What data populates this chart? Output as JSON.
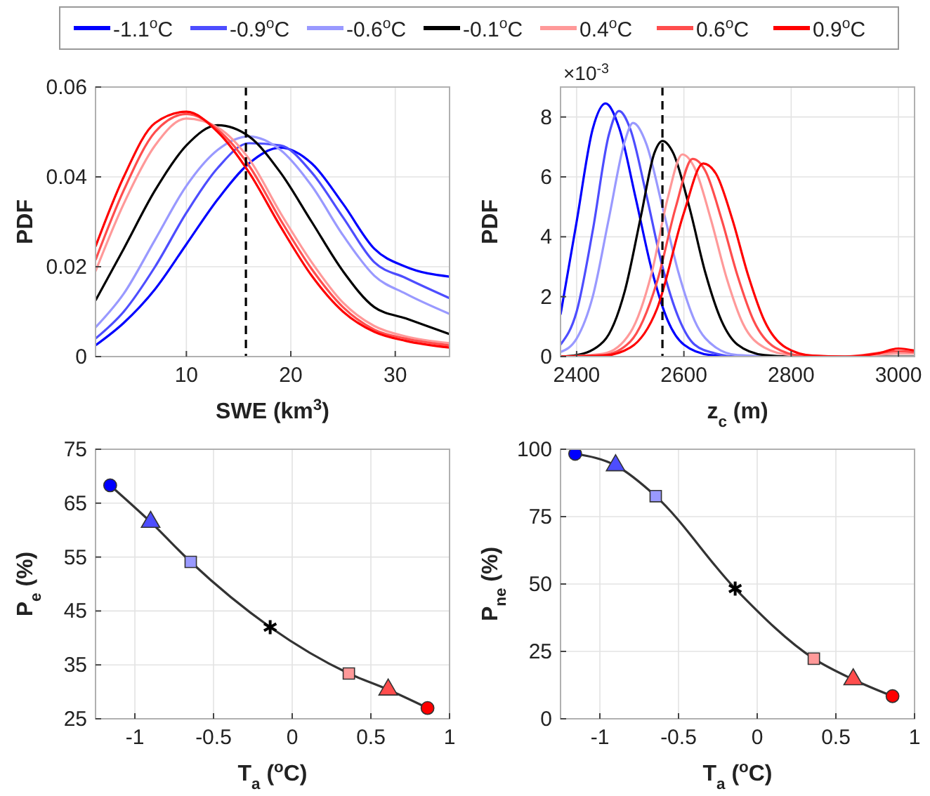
{
  "chart_data": [
    {
      "type": "line",
      "xlabel": "SWE (km$^{3}$)",
      "ylabel": "PDF",
      "xlim": [
        1.3,
        35.2
      ],
      "ylim": [
        0,
        0.06
      ],
      "xticks": [
        10,
        20,
        30
      ],
      "yticks": [
        0,
        0.02,
        0.04,
        0.06
      ],
      "grid": true,
      "legend": "top",
      "marker": "none",
      "x": [
        1.3,
        4,
        7,
        10,
        13,
        16,
        19,
        22,
        25,
        28,
        31,
        35.2
      ],
      "series": [
        {
          "name": "-1.1$^{o}$C",
          "color": "#0000ff",
          "values": [
            0.0025,
            0.0075,
            0.015,
            0.025,
            0.035,
            0.043,
            0.0465,
            0.043,
            0.034,
            0.024,
            0.02,
            0.0178
          ]
        },
        {
          "name": "-0.9$^{o}$C",
          "color": "#4d4dff",
          "values": [
            0.004,
            0.01,
            0.02,
            0.032,
            0.042,
            0.0475,
            0.047,
            0.041,
            0.031,
            0.021,
            0.0175,
            0.013
          ]
        },
        {
          "name": "-0.6$^{o}$C",
          "color": "#9999ff",
          "values": [
            0.0065,
            0.014,
            0.026,
            0.038,
            0.046,
            0.049,
            0.046,
            0.038,
            0.027,
            0.018,
            0.014,
            0.0095
          ]
        },
        {
          "name": "-0.1$^{o}$C",
          "color": "#000000",
          "values": [
            0.0125,
            0.024,
            0.037,
            0.047,
            0.0515,
            0.049,
            0.041,
            0.03,
            0.019,
            0.011,
            0.0085,
            0.005
          ]
        },
        {
          "name": "0.4$^{o}$C",
          "color": "#ff9999",
          "values": [
            0.019,
            0.034,
            0.047,
            0.053,
            0.051,
            0.044,
            0.032,
            0.021,
            0.012,
            0.0068,
            0.0045,
            0.003
          ]
        },
        {
          "name": "0.6$^{o}$C",
          "color": "#ff4d4d",
          "values": [
            0.0215,
            0.037,
            0.05,
            0.054,
            0.0505,
            0.0425,
            0.0305,
            0.0195,
            0.011,
            0.006,
            0.004,
            0.0025
          ]
        },
        {
          "name": "0.9$^{o}$C",
          "color": "#ff0000",
          "values": [
            0.0245,
            0.04,
            0.052,
            0.0545,
            0.05,
            0.041,
            0.029,
            0.018,
            0.01,
            0.0055,
            0.0035,
            0.002
          ]
        }
      ],
      "ref_lines": [
        {
          "axis": "x",
          "value": 15.7,
          "color": "#000000",
          "line_style": "dashed"
        }
      ]
    },
    {
      "type": "line",
      "xlabel": "z$_{c}$ (m)",
      "ylabel": "PDF",
      "annotations": [
        "×10$^{-3}$"
      ],
      "xlim": [
        2370,
        3030
      ],
      "ylim": [
        0,
        9
      ],
      "xticks": [
        2400,
        2600,
        2800,
        3000
      ],
      "yticks": [
        0,
        2,
        4,
        6,
        8
      ],
      "grid": true,
      "marker": "none",
      "series": [
        {
          "color": "#0000ff",
          "x": [
            2370,
            2400,
            2430,
            2454,
            2480,
            2510,
            2540,
            2570,
            2600,
            2650,
            2700,
            2800
          ],
          "values": [
            1.4,
            4.5,
            7.6,
            8.45,
            7.6,
            5.3,
            2.9,
            1.2,
            0.4,
            0.05,
            0,
            0
          ]
        },
        {
          "color": "#4d4dff",
          "x": [
            2370,
            2400,
            2430,
            2460,
            2479,
            2500,
            2530,
            2560,
            2590,
            2620,
            2660,
            2700,
            2800
          ],
          "values": [
            0.4,
            1.5,
            4.2,
            7.4,
            8.2,
            7.6,
            5.4,
            3,
            1.3,
            0.4,
            0.1,
            0,
            0
          ]
        },
        {
          "color": "#9999ff",
          "x": [
            2370,
            2400,
            2430,
            2460,
            2490,
            2505,
            2530,
            2560,
            2590,
            2620,
            2660,
            2700,
            2800
          ],
          "values": [
            0.15,
            0.6,
            2,
            4.6,
            7.2,
            7.8,
            7.1,
            5,
            2.8,
            1.2,
            0.3,
            0.05,
            0
          ]
        },
        {
          "color": "#000000",
          "x": [
            2370,
            2400,
            2450,
            2490,
            2520,
            2545,
            2560,
            2580,
            2610,
            2640,
            2670,
            2700,
            2750,
            2800,
            2900,
            3030
          ],
          "values": [
            0,
            0.05,
            0.5,
            2.2,
            4.7,
            6.8,
            7.2,
            6.8,
            5,
            2.8,
            1.2,
            0.4,
            0.05,
            0,
            0,
            0
          ]
        },
        {
          "color": "#ff9999",
          "x": [
            2370,
            2450,
            2500,
            2540,
            2570,
            2597,
            2620,
            2650,
            2680,
            2710,
            2750,
            2800,
            2900,
            3000,
            3030
          ],
          "values": [
            0,
            0.1,
            0.8,
            2.8,
            5.3,
            6.75,
            6.3,
            4.6,
            2.6,
            1.1,
            0.3,
            0.05,
            0,
            0.1,
            0.1
          ]
        },
        {
          "color": "#ff4d4d",
          "x": [
            2370,
            2450,
            2500,
            2550,
            2585,
            2616,
            2640,
            2670,
            2700,
            2730,
            2770,
            2820,
            2900,
            3000,
            3030
          ],
          "values": [
            0,
            0.05,
            0.5,
            2.5,
            5,
            6.6,
            6.2,
            4.6,
            2.7,
            1.2,
            0.3,
            0.03,
            0,
            0.18,
            0.15
          ]
        },
        {
          "color": "#ff0000",
          "x": [
            2370,
            2450,
            2500,
            2550,
            2600,
            2636,
            2660,
            2690,
            2720,
            2750,
            2790,
            2840,
            2900,
            2960,
            3000,
            3030
          ],
          "values": [
            0,
            0.03,
            0.3,
            1.6,
            4.8,
            6.45,
            6.1,
            4.6,
            2.7,
            1.2,
            0.3,
            0.03,
            0,
            0.1,
            0.27,
            0.2
          ]
        }
      ],
      "ref_lines": [
        {
          "axis": "x",
          "value": 2560,
          "color": "#000000",
          "line_style": "dashed"
        }
      ]
    },
    {
      "type": "line",
      "xlabel": "T$_{a}$ ($^{o}$C)",
      "ylabel": "P$_{e}$ (%)",
      "xlim": [
        -1.25,
        1
      ],
      "ylim": [
        25,
        75
      ],
      "xticks": [
        -1,
        -0.5,
        0,
        0.5,
        1
      ],
      "yticks": [
        25,
        35,
        45,
        55,
        65,
        75
      ],
      "grid": true,
      "series": [
        {
          "color": "#333333",
          "marker": "none",
          "x": [
            -1.157,
            -0.9,
            -0.645,
            -0.14,
            0.36,
            0.61,
            0.86
          ],
          "values": [
            68.3,
            61.5,
            54.1,
            42,
            33.4,
            30.4,
            27
          ]
        },
        {
          "type": "scatter",
          "color": "#0000ff",
          "marker": "circle",
          "x": [
            -1.157
          ],
          "values": [
            68.3
          ]
        },
        {
          "type": "scatter",
          "color": "#4d4dff",
          "marker": "triangle",
          "x": [
            -0.9
          ],
          "values": [
            61.5
          ]
        },
        {
          "type": "scatter",
          "color": "#9999ff",
          "marker": "square",
          "x": [
            -0.645
          ],
          "values": [
            54.1
          ]
        },
        {
          "type": "scatter",
          "color": "#000000",
          "marker": "cross",
          "x": [
            -0.14
          ],
          "values": [
            42
          ]
        },
        {
          "type": "scatter",
          "color": "#ff9999",
          "marker": "square",
          "x": [
            0.36
          ],
          "values": [
            33.4
          ]
        },
        {
          "type": "scatter",
          "color": "#ff4d4d",
          "marker": "triangle",
          "x": [
            0.61
          ],
          "values": [
            30.4
          ]
        },
        {
          "type": "scatter",
          "color": "#ff0000",
          "marker": "circle",
          "x": [
            0.86
          ],
          "values": [
            27
          ]
        }
      ]
    },
    {
      "type": "line",
      "xlabel": "T$_{a}$ ($^{o}$C)",
      "ylabel": "P$_{ne}$ (%)",
      "xlim": [
        -1.25,
        1
      ],
      "ylim": [
        0,
        100
      ],
      "xticks": [
        -1,
        -0.5,
        0,
        0.5,
        1
      ],
      "yticks": [
        0,
        25,
        50,
        75,
        100
      ],
      "grid": true,
      "series": [
        {
          "color": "#333333",
          "marker": "none",
          "x": [
            -1.157,
            -0.9,
            -0.645,
            -0.14,
            0.36,
            0.61,
            0.86
          ],
          "values": [
            98.3,
            94,
            82.6,
            48.3,
            22.3,
            14.6,
            8.4
          ]
        },
        {
          "type": "scatter",
          "color": "#0000ff",
          "marker": "circle",
          "x": [
            -1.157
          ],
          "values": [
            98.3
          ]
        },
        {
          "type": "scatter",
          "color": "#4d4dff",
          "marker": "triangle",
          "x": [
            -0.9
          ],
          "values": [
            94
          ]
        },
        {
          "type": "scatter",
          "color": "#9999ff",
          "marker": "square",
          "x": [
            -0.645
          ],
          "values": [
            82.6
          ]
        },
        {
          "type": "scatter",
          "color": "#000000",
          "marker": "cross",
          "x": [
            -0.14
          ],
          "values": [
            48.3
          ]
        },
        {
          "type": "scatter",
          "color": "#ff9999",
          "marker": "square",
          "x": [
            0.36
          ],
          "values": [
            22.3
          ]
        },
        {
          "type": "scatter",
          "color": "#ff4d4d",
          "marker": "triangle",
          "x": [
            0.61
          ],
          "values": [
            14.6
          ]
        },
        {
          "type": "scatter",
          "color": "#ff0000",
          "marker": "circle",
          "x": [
            0.86
          ],
          "values": [
            8.4
          ]
        }
      ]
    }
  ]
}
